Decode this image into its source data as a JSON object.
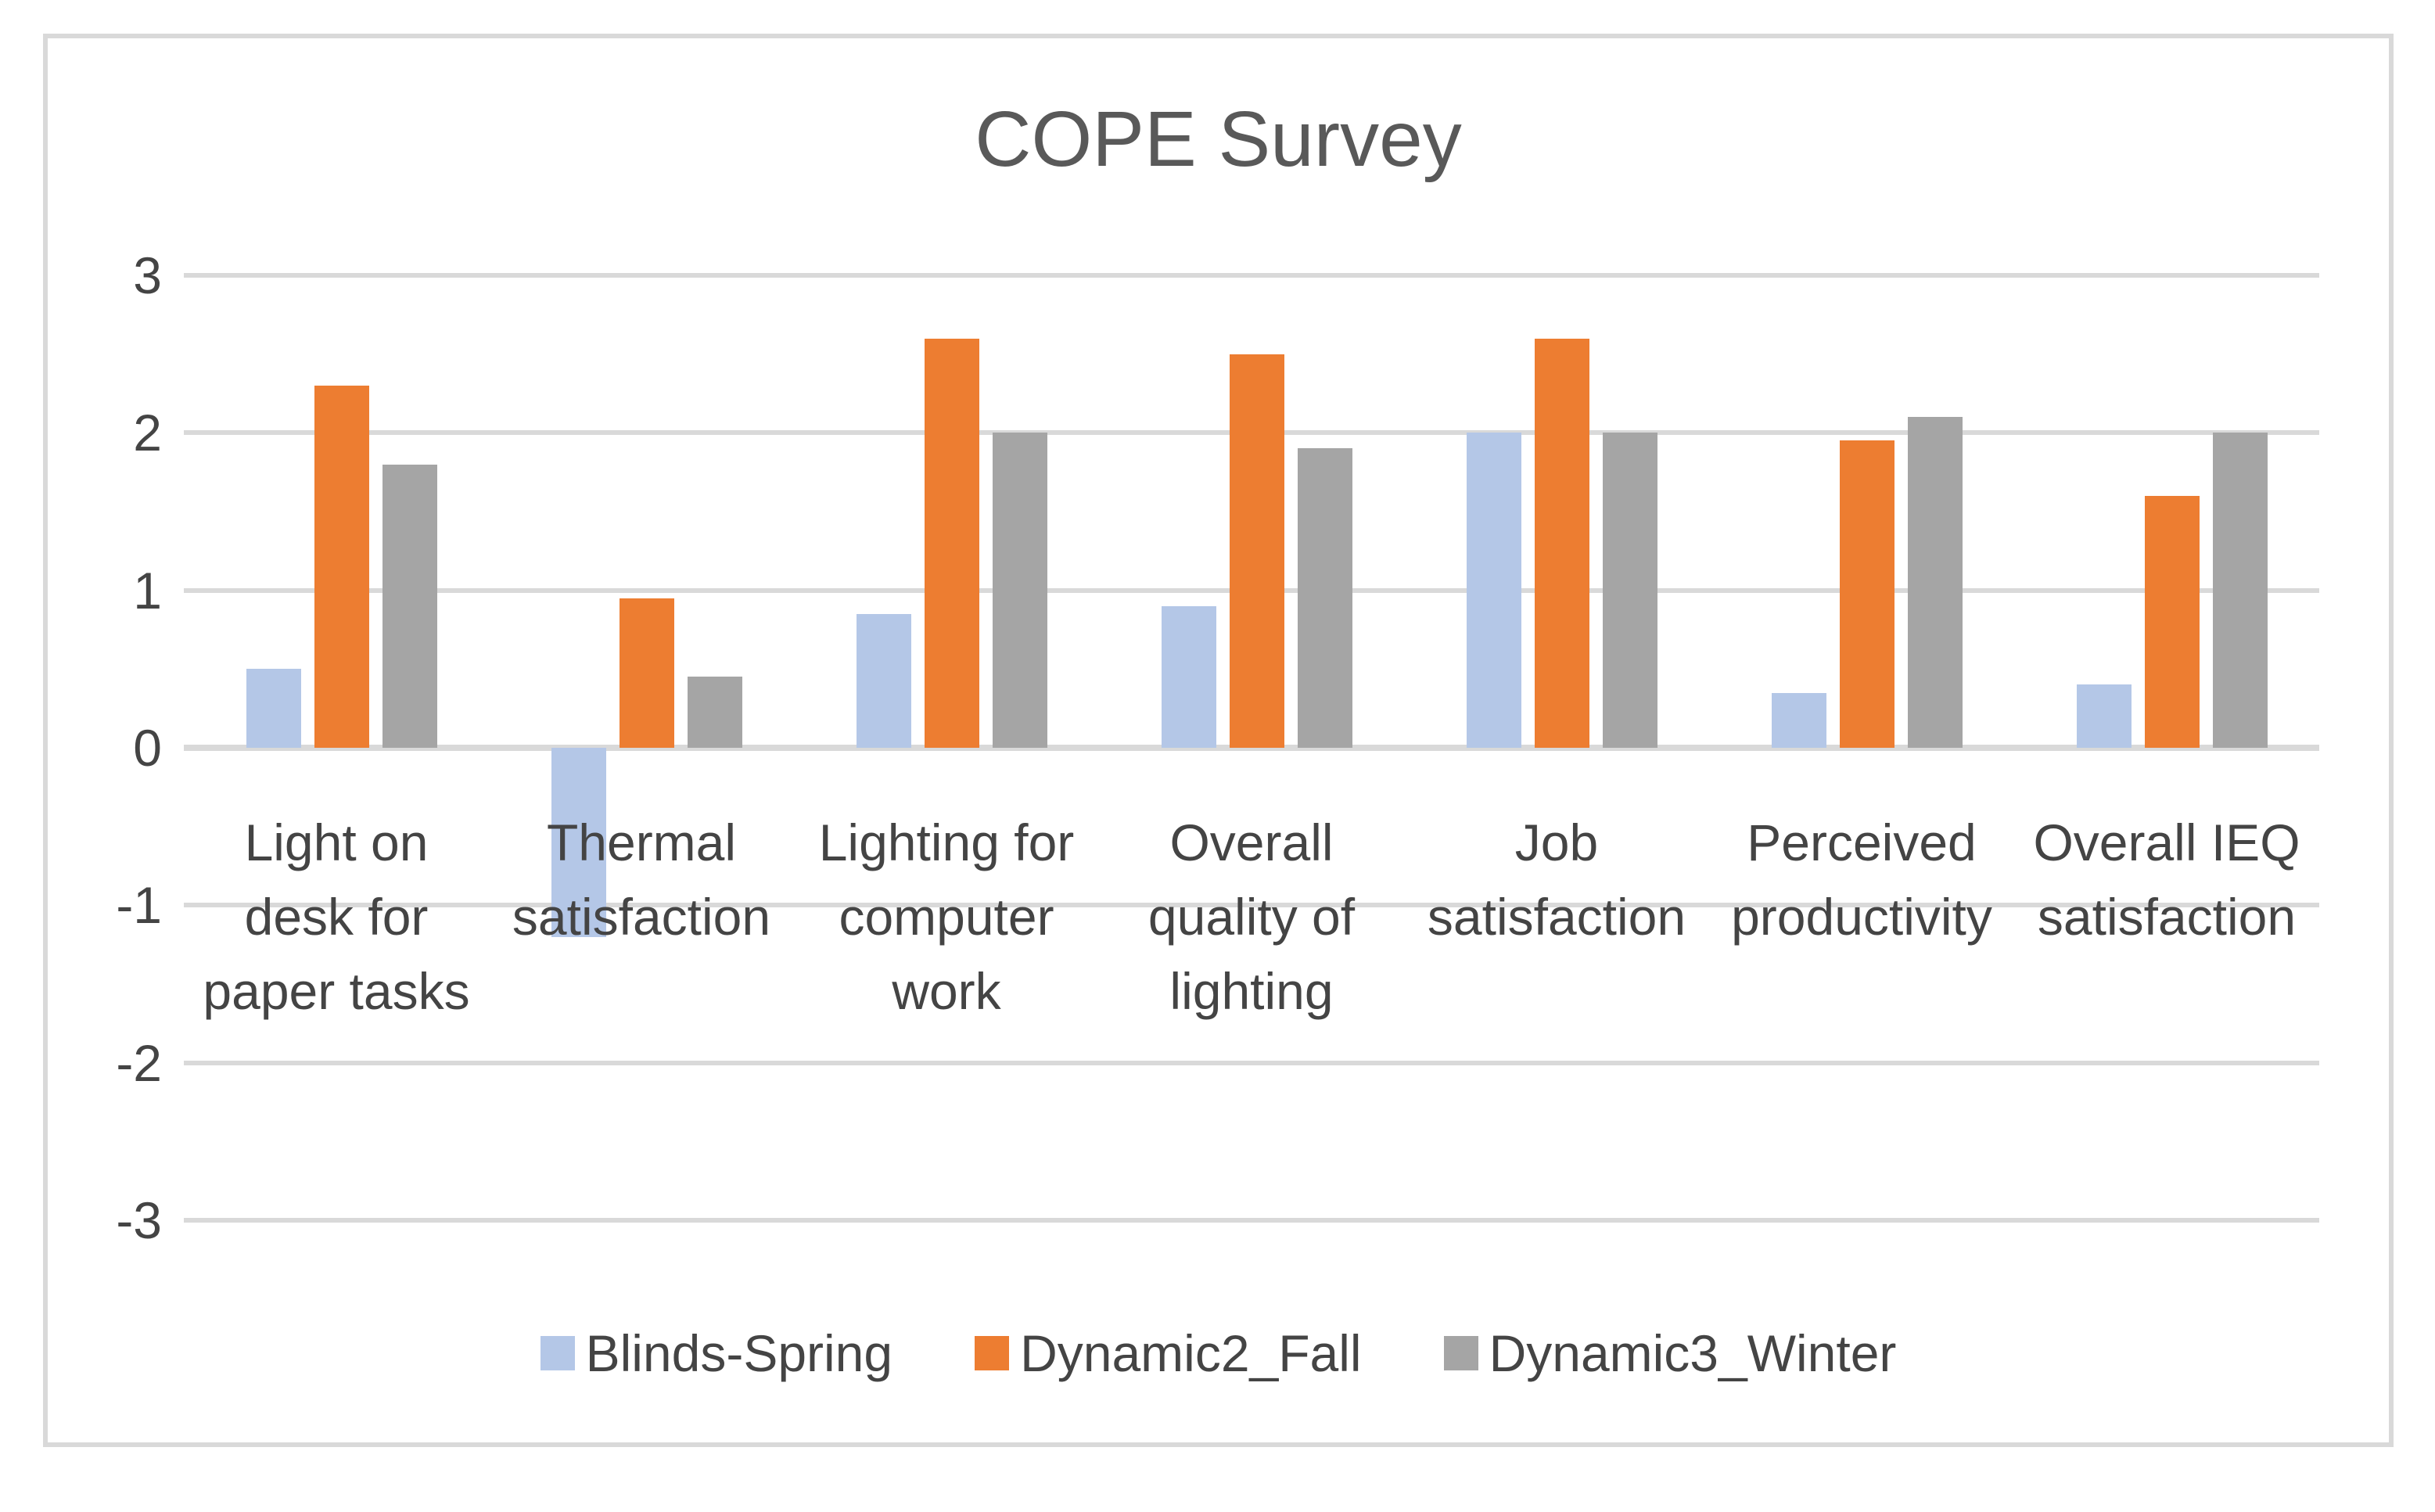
{
  "title": "COPE Survey",
  "chart_data": {
    "type": "bar",
    "title": "COPE Survey",
    "categories": [
      "Light on desk for paper tasks",
      "Thermal satisfaction",
      "Lighting for computer work",
      "Overall quality of lighting",
      "Job satisfaction",
      "Perceived productivity",
      "Overall IEQ satisfaction"
    ],
    "category_lines": [
      [
        "Light on",
        "desk for",
        "paper tasks"
      ],
      [
        "Thermal",
        "satisfaction"
      ],
      [
        "Lighting for",
        "computer",
        "work"
      ],
      [
        "Overall",
        "quality of",
        "lighting"
      ],
      [
        "Job",
        "satisfaction"
      ],
      [
        "Perceived",
        "productivity"
      ],
      [
        "Overall IEQ",
        "satisfaction"
      ]
    ],
    "series": [
      {
        "name": "Blinds-Spring",
        "color": "#B4C7E7",
        "values": [
          0.5,
          -1.2,
          0.85,
          0.9,
          2.0,
          0.35,
          0.4
        ]
      },
      {
        "name": "Dynamic2_Fall",
        "color": "#ED7D31",
        "values": [
          2.3,
          0.95,
          2.6,
          2.5,
          2.6,
          1.95,
          1.6
        ]
      },
      {
        "name": "Dynamic3_Winter",
        "color": "#A5A5A5",
        "values": [
          1.8,
          0.45,
          2.0,
          1.9,
          2.0,
          2.1,
          2.0
        ]
      }
    ],
    "y_axis": {
      "min": -3,
      "max": 3,
      "step": 1,
      "tick_labels": [
        "3",
        "2",
        "1",
        "0",
        "-1",
        "-2",
        "-3"
      ]
    },
    "xlabel": "",
    "ylabel": "",
    "grid": true,
    "legend_position": "bottom",
    "colors": {
      "gridline": "#D9D9D9",
      "frame_border": "#D9D9D9",
      "text": "#444444",
      "title_text": "#595959",
      "background": "#FFFFFF"
    }
  }
}
